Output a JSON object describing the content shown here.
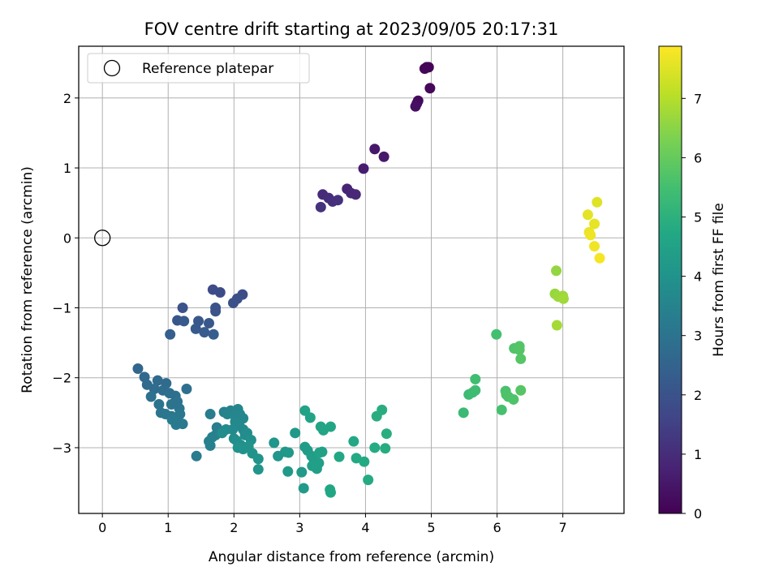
{
  "chart_data": {
    "type": "scatter",
    "title": "FOV centre drift starting at 2023/09/05 20:17:31",
    "xlabel": "Angular distance from reference (arcmin)",
    "ylabel": "Rotation from reference (arcmin)",
    "xlim": [
      -0.36,
      7.93
    ],
    "ylim": [
      -3.94,
      2.74
    ],
    "xticks": [
      "0",
      "1",
      "2",
      "3",
      "4",
      "5",
      "6",
      "7"
    ],
    "yticks": [
      "−3",
      "−2",
      "−1",
      "0",
      "1",
      "2"
    ],
    "grid": true,
    "legend": {
      "placement": "top-left",
      "entries": [
        "Reference platepar"
      ]
    },
    "reference_point": {
      "x": 0,
      "y": 0
    },
    "colorbar": {
      "label": "Hours from first FF file",
      "colormap": "viridis",
      "range": [
        0,
        7.88
      ],
      "ticks": [
        "0",
        "1",
        "2",
        "3",
        "4",
        "5",
        "6",
        "7"
      ]
    },
    "series": [
      {
        "points": [
          [
            4.93,
            2.44,
            0.05
          ],
          [
            4.96,
            2.44,
            0.08
          ],
          [
            4.9,
            2.42,
            0.1
          ],
          [
            4.98,
            2.14,
            0.15
          ],
          [
            4.8,
            1.96,
            0.2
          ],
          [
            4.78,
            1.92,
            0.25
          ],
          [
            4.76,
            1.88,
            0.3
          ],
          [
            4.14,
            1.27,
            0.5
          ],
          [
            4.28,
            1.16,
            0.55
          ],
          [
            3.97,
            0.99,
            0.65
          ],
          [
            3.72,
            0.7,
            0.8
          ],
          [
            3.78,
            0.64,
            0.85
          ],
          [
            3.85,
            0.62,
            0.9
          ],
          [
            3.35,
            0.62,
            0.95
          ],
          [
            3.44,
            0.57,
            1.0
          ],
          [
            3.5,
            0.52,
            1.05
          ],
          [
            3.58,
            0.54,
            1.1
          ],
          [
            3.32,
            0.44,
            1.15
          ],
          [
            1.68,
            -0.74,
            1.8
          ],
          [
            1.79,
            -0.78,
            1.82
          ],
          [
            2.13,
            -0.81,
            1.85
          ],
          [
            2.05,
            -0.87,
            1.9
          ],
          [
            1.99,
            -0.93,
            1.95
          ],
          [
            1.22,
            -1.0,
            2.0
          ],
          [
            1.72,
            -1.0,
            2.02
          ],
          [
            1.72,
            -1.05,
            2.05
          ],
          [
            1.14,
            -1.18,
            2.1
          ],
          [
            1.46,
            -1.19,
            2.12
          ],
          [
            1.62,
            -1.22,
            2.15
          ],
          [
            1.24,
            -1.19,
            2.18
          ],
          [
            1.42,
            -1.3,
            2.2
          ],
          [
            1.55,
            -1.35,
            2.25
          ],
          [
            1.69,
            -1.38,
            2.3
          ],
          [
            1.03,
            -1.38,
            2.35
          ],
          [
            0.54,
            -1.87,
            2.6
          ],
          [
            0.64,
            -1.99,
            2.65
          ],
          [
            0.68,
            -2.1,
            2.7
          ],
          [
            0.84,
            -2.04,
            2.72
          ],
          [
            0.97,
            -2.08,
            2.75
          ],
          [
            0.79,
            -2.16,
            2.8
          ],
          [
            0.92,
            -2.18,
            2.82
          ],
          [
            1.02,
            -2.22,
            2.85
          ],
          [
            1.11,
            -2.26,
            2.88
          ],
          [
            1.28,
            -2.16,
            2.9
          ],
          [
            0.74,
            -2.27,
            2.92
          ],
          [
            1.14,
            -2.34,
            2.95
          ],
          [
            0.86,
            -2.38,
            2.98
          ],
          [
            1.05,
            -2.38,
            3.0
          ],
          [
            1.17,
            -2.44,
            3.02
          ],
          [
            0.89,
            -2.5,
            3.05
          ],
          [
            0.96,
            -2.52,
            3.08
          ],
          [
            1.05,
            -2.55,
            3.1
          ],
          [
            1.18,
            -2.52,
            3.12
          ],
          [
            1.1,
            -2.6,
            3.15
          ],
          [
            1.22,
            -2.66,
            3.18
          ],
          [
            1.06,
            -2.6,
            3.2
          ],
          [
            1.12,
            -2.67,
            3.22
          ],
          [
            1.43,
            -3.12,
            3.25
          ],
          [
            1.64,
            -2.52,
            3.3
          ],
          [
            1.74,
            -2.71,
            3.32
          ],
          [
            1.81,
            -2.78,
            3.35
          ],
          [
            1.62,
            -2.91,
            3.38
          ],
          [
            1.64,
            -2.97,
            3.4
          ],
          [
            1.72,
            -2.82,
            3.42
          ],
          [
            1.67,
            -2.85,
            3.45
          ],
          [
            1.85,
            -2.49,
            3.48
          ],
          [
            1.95,
            -2.47,
            3.5
          ],
          [
            1.9,
            -2.52,
            3.52
          ],
          [
            2.06,
            -2.45,
            3.55
          ],
          [
            2.01,
            -2.54,
            3.58
          ],
          [
            2.09,
            -2.52,
            3.6
          ],
          [
            2.14,
            -2.58,
            3.62
          ],
          [
            2.02,
            -2.63,
            3.65
          ],
          [
            2.08,
            -2.68,
            3.68
          ],
          [
            2.14,
            -2.74,
            3.7
          ],
          [
            1.98,
            -2.74,
            3.72
          ],
          [
            1.88,
            -2.74,
            3.75
          ],
          [
            1.82,
            -2.79,
            3.78
          ],
          [
            2.2,
            -2.79,
            3.8
          ],
          [
            2.17,
            -2.82,
            3.82
          ],
          [
            2.0,
            -2.87,
            3.85
          ],
          [
            2.04,
            -2.9,
            3.88
          ],
          [
            2.26,
            -2.89,
            3.9
          ],
          [
            2.1,
            -2.96,
            3.92
          ],
          [
            2.14,
            -3.02,
            3.95
          ],
          [
            2.06,
            -3.0,
            3.98
          ],
          [
            2.22,
            -2.98,
            4.0
          ],
          [
            2.28,
            -3.08,
            4.02
          ],
          [
            2.37,
            -3.16,
            4.05
          ],
          [
            2.37,
            -3.31,
            4.08
          ],
          [
            2.61,
            -2.93,
            4.1
          ],
          [
            2.67,
            -3.12,
            4.12
          ],
          [
            2.78,
            -3.06,
            4.15
          ],
          [
            2.83,
            -3.07,
            4.18
          ],
          [
            2.82,
            -3.34,
            4.2
          ],
          [
            2.93,
            -2.79,
            4.22
          ],
          [
            3.03,
            -3.35,
            4.25
          ],
          [
            3.06,
            -3.58,
            4.28
          ],
          [
            3.08,
            -2.99,
            4.3
          ],
          [
            3.12,
            -3.04,
            4.32
          ],
          [
            3.18,
            -3.12,
            4.35
          ],
          [
            3.22,
            -3.19,
            4.38
          ],
          [
            3.26,
            -3.3,
            4.4
          ],
          [
            3.29,
            -3.22,
            4.42
          ],
          [
            3.19,
            -3.26,
            4.45
          ],
          [
            3.3,
            -3.07,
            4.48
          ],
          [
            3.34,
            -3.06,
            4.5
          ],
          [
            3.08,
            -2.47,
            4.52
          ],
          [
            3.16,
            -2.57,
            4.55
          ],
          [
            3.32,
            -2.7,
            4.58
          ],
          [
            3.36,
            -2.75,
            4.6
          ],
          [
            3.47,
            -2.7,
            4.62
          ],
          [
            3.46,
            -3.6,
            4.65
          ],
          [
            3.47,
            -3.64,
            4.68
          ],
          [
            3.6,
            -3.13,
            4.7
          ],
          [
            3.82,
            -2.91,
            4.72
          ],
          [
            3.86,
            -3.15,
            4.75
          ],
          [
            3.98,
            -3.2,
            4.78
          ],
          [
            4.04,
            -3.46,
            4.8
          ],
          [
            4.14,
            -3.0,
            4.82
          ],
          [
            4.3,
            -3.01,
            4.85
          ],
          [
            4.17,
            -2.55,
            4.88
          ],
          [
            4.25,
            -2.46,
            4.9
          ],
          [
            4.32,
            -2.8,
            4.92
          ],
          [
            5.49,
            -2.5,
            5.3
          ],
          [
            5.57,
            -2.24,
            5.35
          ],
          [
            5.63,
            -2.21,
            5.4
          ],
          [
            5.67,
            -2.18,
            5.42
          ],
          [
            5.67,
            -2.02,
            5.45
          ],
          [
            5.99,
            -1.38,
            5.5
          ],
          [
            6.07,
            -2.46,
            5.55
          ],
          [
            6.13,
            -2.19,
            5.6
          ],
          [
            6.17,
            -2.27,
            5.62
          ],
          [
            6.14,
            -2.24,
            5.65
          ],
          [
            6.25,
            -2.31,
            5.68
          ],
          [
            6.26,
            -1.58,
            5.7
          ],
          [
            6.34,
            -1.55,
            5.72
          ],
          [
            6.34,
            -1.6,
            5.75
          ],
          [
            6.36,
            -1.73,
            5.78
          ],
          [
            6.36,
            -2.18,
            5.8
          ],
          [
            6.9,
            -0.47,
            6.6
          ],
          [
            6.88,
            -0.8,
            6.65
          ],
          [
            6.93,
            -0.84,
            6.7
          ],
          [
            7.0,
            -0.83,
            6.72
          ],
          [
            7.01,
            -0.87,
            6.75
          ],
          [
            6.91,
            -1.25,
            6.8
          ],
          [
            7.52,
            0.51,
            7.5
          ],
          [
            7.38,
            0.33,
            7.55
          ],
          [
            7.48,
            0.2,
            7.6
          ],
          [
            7.4,
            0.08,
            7.65
          ],
          [
            7.42,
            0.04,
            7.68
          ],
          [
            7.48,
            -0.12,
            7.72
          ],
          [
            7.56,
            -0.29,
            7.78
          ]
        ]
      }
    ]
  }
}
